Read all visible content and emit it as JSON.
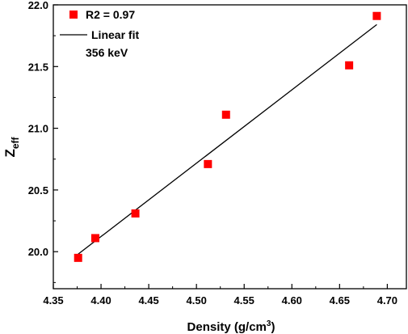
{
  "chart_data": {
    "type": "scatter",
    "xlabel": "Density (g/cm",
    "xlabel_sup": "3",
    "xlabel_close": ")",
    "ylabel_main": "Z",
    "ylabel_sub": "eff",
    "xlim": [
      4.35,
      4.72
    ],
    "ylim": [
      19.7,
      22.0
    ],
    "x_ticks": [
      "4.35",
      "4.40",
      "4.45",
      "4.50",
      "4.55",
      "4.60",
      "4.65",
      "4.70"
    ],
    "y_ticks": [
      "20.0",
      "20.5",
      "21.0",
      "21.5",
      "22.0"
    ],
    "series": [
      {
        "marker": "square",
        "color": "#ff0000",
        "points": [
          {
            "x": 4.376,
            "y": 19.95
          },
          {
            "x": 4.394,
            "y": 20.11
          },
          {
            "x": 4.436,
            "y": 20.31
          },
          {
            "x": 4.512,
            "y": 20.71
          },
          {
            "x": 4.531,
            "y": 21.11
          },
          {
            "x": 4.66,
            "y": 21.51
          },
          {
            "x": 4.689,
            "y": 21.91
          }
        ]
      }
    ],
    "fit_line": {
      "color": "#000000",
      "x": [
        4.376,
        4.689
      ],
      "y": [
        19.98,
        21.84
      ]
    },
    "legend": {
      "placement": "top-left",
      "entries": [
        "R2 = 0.97",
        "Linear fit",
        "356 keV"
      ]
    },
    "grid": false
  }
}
